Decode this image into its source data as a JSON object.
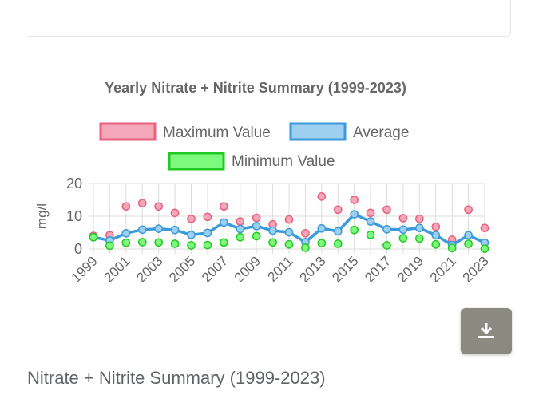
{
  "section": {
    "heading": "Nitrate + Nitrite Summary (1999-2023)"
  },
  "download": {
    "icon": "download-icon"
  },
  "colors": {
    "max_fill": "#f4a7b9",
    "max_stroke": "#e8627f",
    "avg_fill": "#9dcff0",
    "avg_stroke": "#3b9ad9",
    "min_fill": "#7dfa7d",
    "min_stroke": "#22c922",
    "grid": "#dddddd",
    "text": "#666666"
  },
  "chart_data": {
    "type": "line",
    "title": "Yearly Nitrate + Nitrite Summary (1999-2023)",
    "ylabel": "mg/l",
    "xlabel": "",
    "ylim": [
      0,
      20
    ],
    "yticks": [
      0,
      10,
      20
    ],
    "legend_position": "top",
    "grid": true,
    "x": [
      "1999",
      "2000",
      "2001",
      "2002",
      "2003",
      "2004",
      "2005",
      "2006",
      "2007",
      "2008",
      "2009",
      "2010",
      "2011",
      "2012",
      "2013",
      "2014",
      "2015",
      "2016",
      "2017",
      "2018",
      "2019",
      "2020",
      "2021",
      "2022",
      "2023"
    ],
    "xtick_labels": [
      "1999",
      "2001",
      "2003",
      "2005",
      "2007",
      "2009",
      "2011",
      "2013",
      "2015",
      "2017",
      "2019",
      "2021",
      "2023"
    ],
    "series": [
      {
        "name": "Maximum Value",
        "key": "max",
        "style": "points",
        "values": [
          4,
          4.2,
          13,
          14,
          13,
          11,
          9.2,
          9.8,
          13,
          8.4,
          9.5,
          7.5,
          9,
          4.8,
          16,
          12,
          15,
          11,
          12,
          9.4,
          9.2,
          6.8,
          2.8,
          12,
          6.4
        ]
      },
      {
        "name": "Average",
        "key": "avg",
        "style": "line",
        "values": [
          3.6,
          2.6,
          4.8,
          5.9,
          6.2,
          5.8,
          4.3,
          4.9,
          8.1,
          6.1,
          7,
          5.6,
          5.1,
          2.1,
          6.3,
          5.4,
          10.6,
          8.4,
          6,
          5.9,
          6.4,
          4.2,
          1.2,
          4.2,
          1.9
        ]
      },
      {
        "name": "Minimum Value",
        "key": "min",
        "style": "points",
        "values": [
          3.6,
          1,
          1.9,
          2.1,
          2,
          1.6,
          1.1,
          1.2,
          2,
          3.6,
          3.9,
          2,
          1.4,
          0.4,
          1.8,
          1.6,
          5.8,
          4.3,
          1.1,
          3.3,
          3.2,
          1.4,
          0.3,
          1.6,
          0.1
        ]
      }
    ]
  }
}
